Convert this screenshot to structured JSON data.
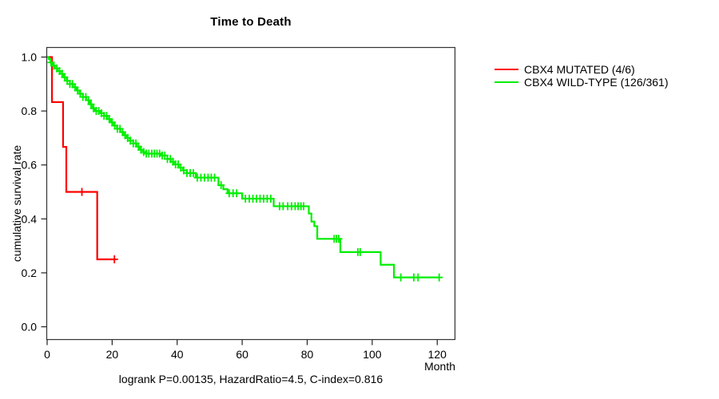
{
  "chart_data": {
    "type": "line",
    "subtype": "kaplan-meier-step",
    "title": "Time to Death",
    "xlabel": "Month",
    "ylabel": "cumulative survival rate",
    "xlim": [
      0,
      125.6
    ],
    "ylim": [
      0.0,
      1.0
    ],
    "xticks": [
      0,
      20,
      40,
      60,
      80,
      100,
      120
    ],
    "yticks": [
      "0.0",
      "0.2",
      "0.4",
      "0.6",
      "0.8",
      "1.0"
    ],
    "grid": false,
    "legend_position": "right-outside",
    "annotation": "logrank P=0.00135, HazardRatio=4.5, C-index=0.816",
    "series": [
      {
        "name": "CBX4 MUTATED (4/6)",
        "color": "#ff0000",
        "end_time": 21.2,
        "steps": [
          [
            0,
            1.0
          ],
          [
            1.5,
            0.833
          ],
          [
            4.9,
            0.667
          ],
          [
            5.9,
            0.5
          ],
          [
            15.4,
            0.25
          ]
        ],
        "censors": [
          10.7,
          20.7
        ]
      },
      {
        "name": "CBX4 WILD-TYPE (126/361)",
        "color": "#00ee00",
        "end_time": 120.6,
        "steps": [
          [
            0,
            1.0
          ],
          [
            0.5,
            0.993
          ],
          [
            1,
            0.98
          ],
          [
            1.7,
            0.968
          ],
          [
            2.4,
            0.958
          ],
          [
            3.2,
            0.948
          ],
          [
            4,
            0.938
          ],
          [
            5,
            0.925
          ],
          [
            6,
            0.912
          ],
          [
            7,
            0.9
          ],
          [
            8,
            0.888
          ],
          [
            9,
            0.876
          ],
          [
            10,
            0.864
          ],
          [
            11,
            0.852
          ],
          [
            12,
            0.84
          ],
          [
            13,
            0.825
          ],
          [
            13.8,
            0.81
          ],
          [
            14.6,
            0.8
          ],
          [
            16.5,
            0.792
          ],
          [
            17.5,
            0.782
          ],
          [
            18.5,
            0.77
          ],
          [
            19.5,
            0.758
          ],
          [
            20.5,
            0.746
          ],
          [
            21.5,
            0.734
          ],
          [
            22.5,
            0.722
          ],
          [
            23.5,
            0.71
          ],
          [
            24.5,
            0.7
          ],
          [
            25.5,
            0.69
          ],
          [
            26.5,
            0.68
          ],
          [
            27.5,
            0.668
          ],
          [
            28.5,
            0.656
          ],
          [
            29.5,
            0.648
          ],
          [
            30.5,
            0.642
          ],
          [
            35,
            0.635
          ],
          [
            37,
            0.622
          ],
          [
            38,
            0.612
          ],
          [
            39,
            0.602
          ],
          [
            40.5,
            0.59
          ],
          [
            41.8,
            0.58
          ],
          [
            43,
            0.57
          ],
          [
            45.7,
            0.553
          ],
          [
            52.7,
            0.525
          ],
          [
            54.2,
            0.51
          ],
          [
            55.5,
            0.495
          ],
          [
            60,
            0.475
          ],
          [
            69.7,
            0.447
          ],
          [
            80.5,
            0.42
          ],
          [
            81.3,
            0.39
          ],
          [
            82.2,
            0.373
          ],
          [
            83.1,
            0.326
          ],
          [
            90.2,
            0.277
          ],
          [
            102.6,
            0.23
          ],
          [
            106.7,
            0.183
          ]
        ],
        "censors": [
          1.2,
          2.1,
          3,
          3.8,
          4.6,
          5.4,
          6.2,
          7,
          7.8,
          8.6,
          9.4,
          10.2,
          11,
          11.9,
          12.7,
          13.5,
          14.3,
          15.1,
          15.9,
          16.7,
          17.5,
          18.3,
          19.1,
          20,
          20.8,
          21.6,
          22.4,
          23.2,
          24,
          24.8,
          25.6,
          26.5,
          27.3,
          28.1,
          28.9,
          29.7,
          30.5,
          31.3,
          32.2,
          33,
          33.8,
          34.6,
          35.4,
          36.2,
          37,
          37.9,
          38.7,
          39.5,
          40.3,
          41.1,
          42,
          43,
          44,
          45,
          46.2,
          47.3,
          48.4,
          49.5,
          50.5,
          51.5,
          53.5,
          56,
          57.2,
          58.3,
          61,
          62.2,
          63.3,
          64.4,
          65.5,
          66.6,
          67.7,
          68.8,
          71.5,
          72.6,
          74,
          75.2,
          76.3,
          77.2,
          78.1,
          78.9,
          88.3,
          89,
          89.7,
          95.6,
          96.3,
          108.8,
          112.8,
          114.1,
          120.6
        ]
      }
    ]
  }
}
